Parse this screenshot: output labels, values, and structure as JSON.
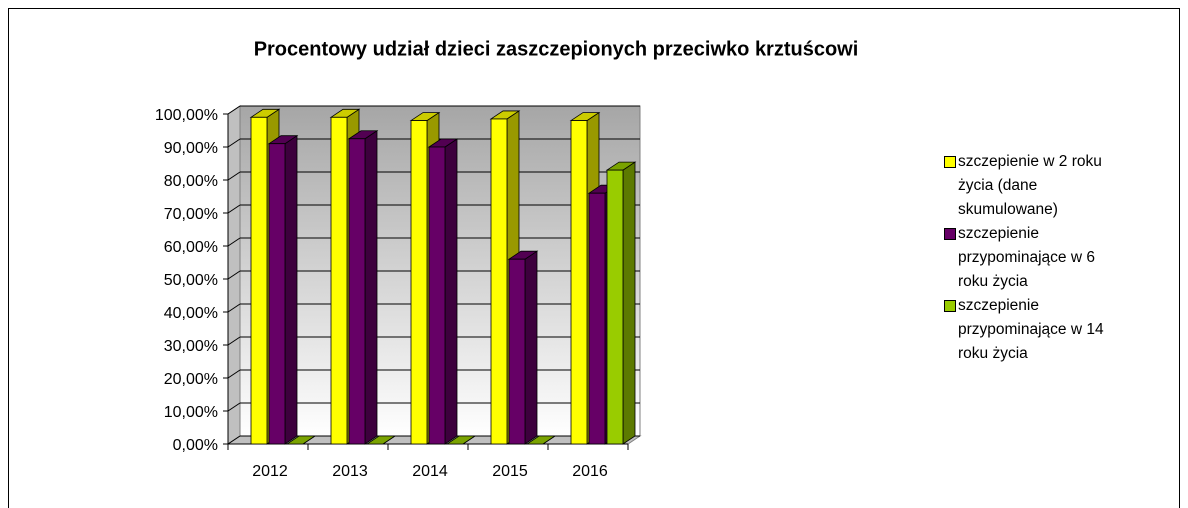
{
  "chart_data": {
    "type": "bar3d",
    "title": "Procentowy udział dzieci zaszczepionych przeciwko krztuścowi",
    "categories": [
      "2012",
      "2013",
      "2014",
      "2015",
      "2016"
    ],
    "series": [
      {
        "name": "szczepienie w 2 roku życia (dane skumulowane)",
        "color": "#ffff00",
        "values": [
          99,
          99,
          98,
          98.5,
          98
        ]
      },
      {
        "name": "szczepienie przypominające w 6 roku życia",
        "color": "#660066",
        "values": [
          91,
          92.5,
          90,
          56,
          76
        ]
      },
      {
        "name": "szczepienie przypominające w 14 roku życia",
        "color": "#99cc00",
        "values": [
          0,
          0,
          0,
          0,
          83
        ]
      }
    ],
    "ylim": [
      0,
      100
    ],
    "yticks": [
      {
        "value": 0,
        "label": "0,00%"
      },
      {
        "value": 10,
        "label": "10,00%"
      },
      {
        "value": 20,
        "label": "20,00%"
      },
      {
        "value": 30,
        "label": "30,00%"
      },
      {
        "value": 40,
        "label": "40,00%"
      },
      {
        "value": 50,
        "label": "50,00%"
      },
      {
        "value": 60,
        "label": "60,00%"
      },
      {
        "value": 70,
        "label": "70,00%"
      },
      {
        "value": 80,
        "label": "80,00%"
      },
      {
        "value": 90,
        "label": "90,00%"
      },
      {
        "value": 100,
        "label": "100,00%"
      }
    ],
    "grid": true,
    "legend": "right"
  }
}
